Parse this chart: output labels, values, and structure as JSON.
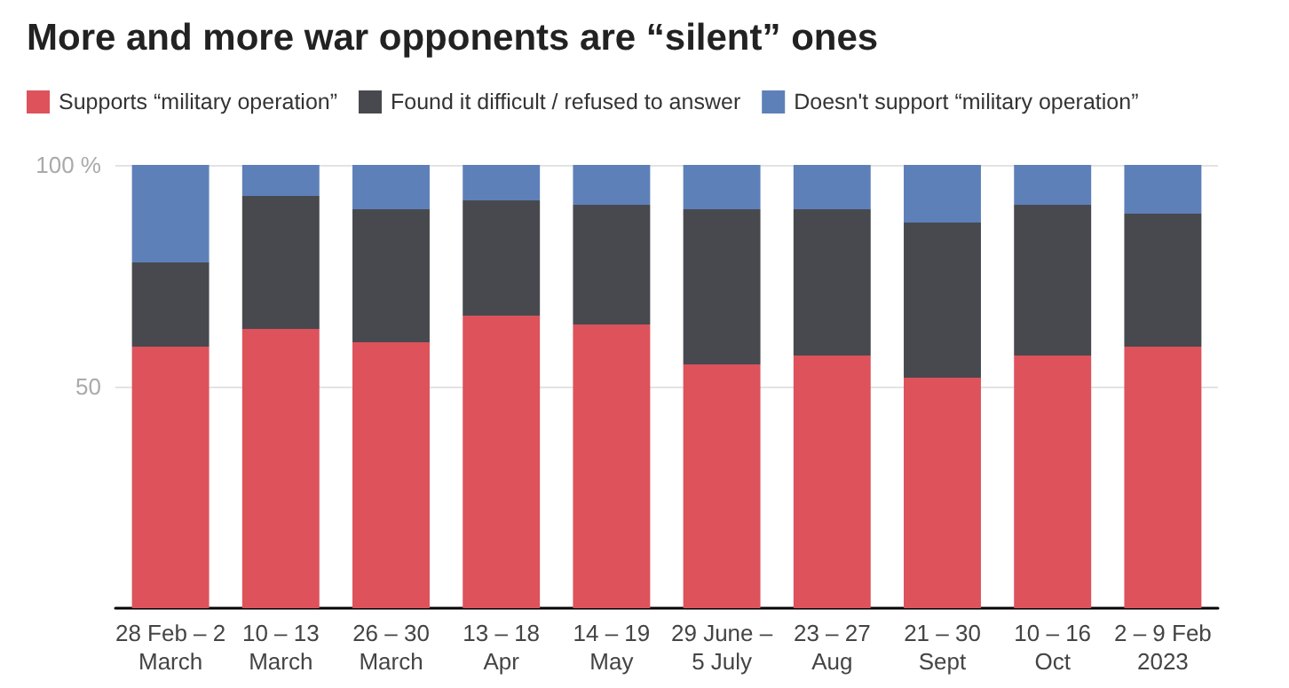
{
  "chart_data": {
    "type": "bar",
    "title": "More and more war opponents are “silent” ones",
    "categories": [
      "28 Feb – 2\nMarch",
      "10 – 13\nMarch",
      "26 – 30\nMarch",
      "13 – 18\nApr",
      "14 – 19\nMay",
      "29 June –\n5 July",
      "23 – 27\nAug",
      "21 – 30\nSept",
      "10 – 16\nOct",
      "2 – 9 Feb\n2023"
    ],
    "stacked": true,
    "series": [
      {
        "name": "Supports “military operation”",
        "color": "#dd525b",
        "values": [
          59,
          63,
          60,
          66,
          64,
          55,
          57,
          52,
          57,
          59
        ]
      },
      {
        "name": "Found it difficult / refused to answer",
        "color": "#48494e",
        "values": [
          19,
          30,
          30,
          26,
          27,
          35,
          33,
          35,
          34,
          30
        ]
      },
      {
        "name": "Doesn't support “military operation”",
        "color": "#5e80b9",
        "values": [
          22,
          7,
          10,
          8,
          9,
          10,
          10,
          13,
          9,
          11
        ]
      }
    ],
    "ylim": [
      0,
      100
    ],
    "yticks": [
      {
        "value": 50,
        "label": "50"
      },
      {
        "value": 100,
        "label": "100 %"
      }
    ],
    "grid": "y",
    "legend": "top left"
  }
}
